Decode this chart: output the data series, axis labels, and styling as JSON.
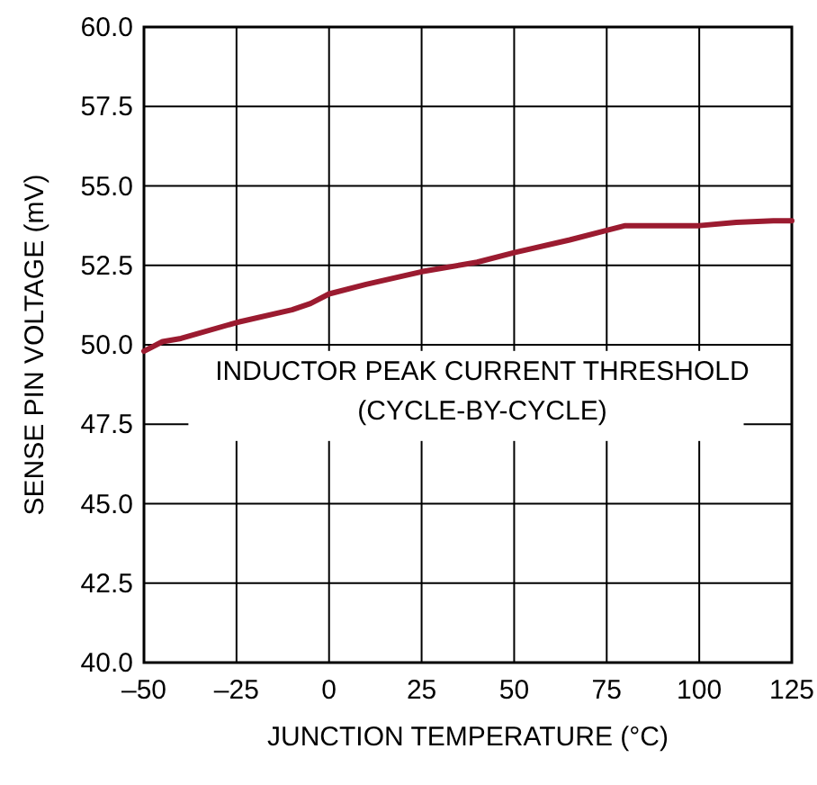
{
  "chart_data": {
    "type": "line",
    "xlabel": "JUNCTION TEMPERATURE (°C)",
    "ylabel": "SENSE PIN VOLTAGE (mV)",
    "xlim": [
      -50,
      125
    ],
    "xticks": [
      {
        "value": -50,
        "label": "–50"
      },
      {
        "value": -25,
        "label": "–25"
      },
      0,
      25,
      50,
      75,
      100,
      125
    ],
    "ylim": [
      40,
      60
    ],
    "yticks": [
      {
        "value": 40,
        "label": "40.0"
      },
      {
        "value": 42.5,
        "label": "42.5"
      },
      {
        "value": 45,
        "label": "45.0"
      },
      {
        "value": 47.5,
        "label": "47.5"
      },
      {
        "value": 50,
        "label": "50.0"
      },
      {
        "value": 52.5,
        "label": "52.5"
      },
      {
        "value": 55,
        "label": "55.0"
      },
      {
        "value": 57.5,
        "label": "57.5"
      },
      {
        "value": 60,
        "label": "60.0"
      }
    ],
    "grid": true,
    "annotations": [
      "INDUCTOR PEAK CURRENT THRESHOLD",
      "(CYCLE-BY-CYCLE)"
    ],
    "series": [
      {
        "color": "#9b1b30",
        "x": [
          -50,
          -45,
          -40,
          -25,
          -10,
          -5,
          0,
          10,
          25,
          40,
          50,
          65,
          75,
          80,
          90,
          100,
          110,
          120,
          125
        ],
        "values": [
          49.8,
          50.1,
          50.2,
          50.7,
          51.1,
          51.3,
          51.6,
          51.9,
          52.3,
          52.6,
          52.9,
          53.3,
          53.6,
          53.75,
          53.75,
          53.75,
          53.85,
          53.9,
          53.9
        ]
      }
    ]
  }
}
